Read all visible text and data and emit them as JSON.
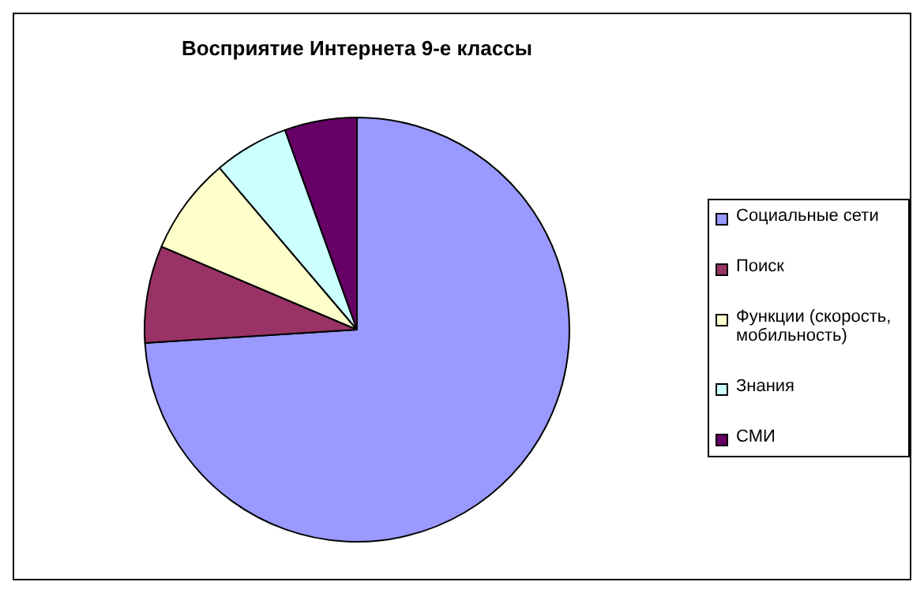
{
  "chart_data": {
    "type": "pie",
    "title": "Восприятие Интернета 9-е классы",
    "categories": [
      "Социальные сети",
      "Поиск",
      "Функции (скорость, мобильность)",
      "Знания",
      "СМИ"
    ],
    "values": [
      74,
      7.4,
      7.4,
      5.7,
      5.5
    ],
    "colors": [
      "#9999ff",
      "#993366",
      "#ffffcc",
      "#ccffff",
      "#660066"
    ],
    "legend": "right"
  }
}
